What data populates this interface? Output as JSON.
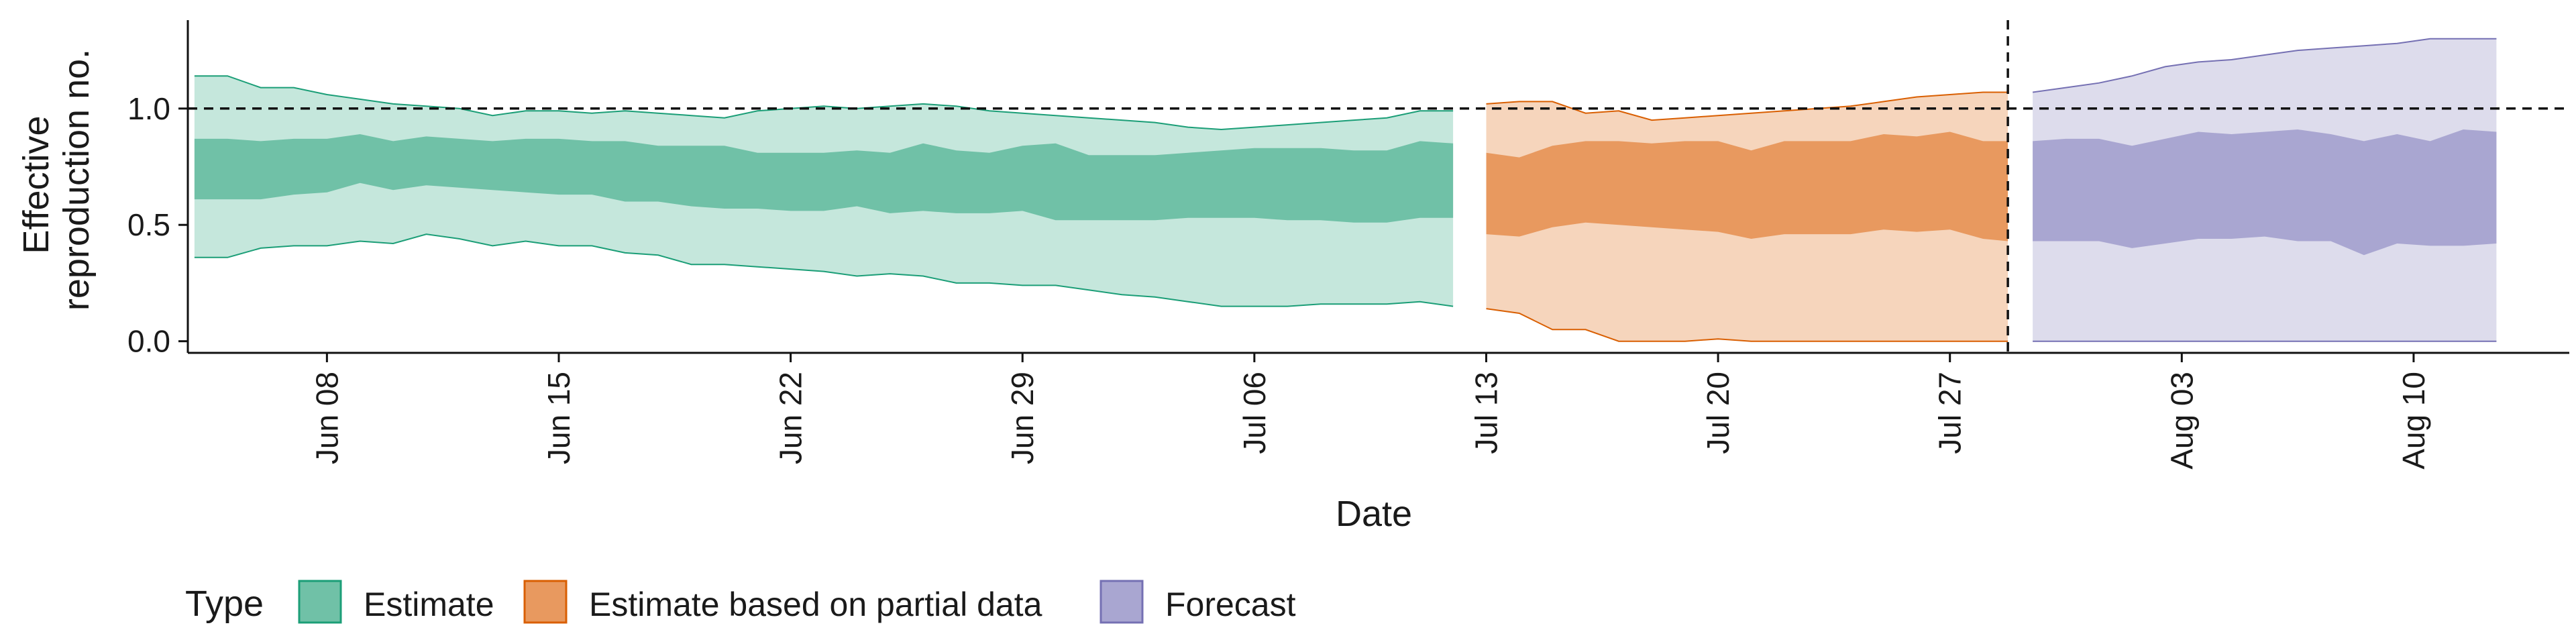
{
  "chart_data": {
    "type": "area",
    "title": "",
    "xlabel": "Date",
    "ylabel_lines": [
      "Effective",
      "reproduction no."
    ],
    "x_axis": {
      "start_date": "2020-06-05",
      "range_days": [
        -1.2,
        70.7
      ],
      "ticks": [
        {
          "day": 3,
          "label": "Jun 08"
        },
        {
          "day": 10,
          "label": "Jun 15"
        },
        {
          "day": 17,
          "label": "Jun 22"
        },
        {
          "day": 24,
          "label": "Jun 29"
        },
        {
          "day": 31,
          "label": "Jul 06"
        },
        {
          "day": 38,
          "label": "Jul 13"
        },
        {
          "day": 45,
          "label": "Jul 20"
        },
        {
          "day": 52,
          "label": "Jul 27"
        },
        {
          "day": 59,
          "label": "Aug 03"
        },
        {
          "day": 66,
          "label": "Aug 10"
        }
      ]
    },
    "y_axis": {
      "range": [
        -0.05,
        1.38
      ],
      "ticks": [
        {
          "value": 0.0,
          "label": "0.0"
        },
        {
          "value": 0.5,
          "label": "0.5"
        },
        {
          "value": 1.0,
          "label": "1.0"
        }
      ]
    },
    "reference_line": {
      "y": 1.0,
      "style": "dashed"
    },
    "forecast_divider_day": 53.75,
    "legend": {
      "title": "Type",
      "position": "bottom-left",
      "entries": [
        "Estimate",
        "Estimate based on partial data",
        "Forecast"
      ]
    },
    "series": [
      {
        "name": "Estimate",
        "fill_outer": "#c5e7dc",
        "fill_inner": "#70c1a7",
        "stroke": "#1b9e77",
        "days": [
          -1,
          0,
          1,
          2,
          3,
          4,
          5,
          6,
          7,
          8,
          9,
          10,
          11,
          12,
          13,
          14,
          15,
          16,
          17,
          18,
          19,
          20,
          21,
          22,
          23,
          24,
          25,
          26,
          27,
          28,
          29,
          30,
          31,
          32,
          33,
          34,
          35,
          36,
          37
        ],
        "lower_90": [
          0.36,
          0.36,
          0.4,
          0.41,
          0.41,
          0.43,
          0.42,
          0.46,
          0.44,
          0.41,
          0.43,
          0.41,
          0.41,
          0.38,
          0.37,
          0.33,
          0.33,
          0.32,
          0.31,
          0.3,
          0.28,
          0.29,
          0.28,
          0.25,
          0.25,
          0.24,
          0.24,
          0.22,
          0.2,
          0.19,
          0.17,
          0.15,
          0.15,
          0.15,
          0.16,
          0.16,
          0.16,
          0.17,
          0.15
        ],
        "lower_50": [
          0.61,
          0.61,
          0.61,
          0.63,
          0.64,
          0.68,
          0.65,
          0.67,
          0.66,
          0.65,
          0.64,
          0.63,
          0.63,
          0.6,
          0.6,
          0.58,
          0.57,
          0.57,
          0.56,
          0.56,
          0.58,
          0.55,
          0.56,
          0.55,
          0.55,
          0.56,
          0.52,
          0.52,
          0.52,
          0.52,
          0.53,
          0.53,
          0.53,
          0.52,
          0.52,
          0.51,
          0.51,
          0.53,
          0.53
        ],
        "upper_50": [
          0.87,
          0.87,
          0.86,
          0.87,
          0.87,
          0.89,
          0.86,
          0.88,
          0.87,
          0.86,
          0.87,
          0.87,
          0.86,
          0.86,
          0.84,
          0.84,
          0.84,
          0.81,
          0.81,
          0.81,
          0.82,
          0.81,
          0.85,
          0.82,
          0.81,
          0.84,
          0.85,
          0.8,
          0.8,
          0.8,
          0.81,
          0.82,
          0.83,
          0.83,
          0.83,
          0.82,
          0.82,
          0.86,
          0.85
        ],
        "upper_90": [
          1.14,
          1.14,
          1.09,
          1.09,
          1.06,
          1.04,
          1.02,
          1.01,
          1.0,
          0.97,
          0.99,
          0.99,
          0.98,
          0.99,
          0.98,
          0.97,
          0.96,
          0.99,
          1.0,
          1.01,
          1.0,
          1.01,
          1.02,
          1.01,
          0.99,
          0.98,
          0.97,
          0.96,
          0.95,
          0.94,
          0.92,
          0.91,
          0.92,
          0.93,
          0.94,
          0.95,
          0.96,
          0.99,
          0.99
        ]
      },
      {
        "name": "Estimate based on partial data",
        "fill_outer": "#f6d5bc",
        "fill_inner": "#e8995f",
        "stroke": "#d95f02",
        "days": [
          38,
          39,
          40,
          41,
          42,
          43,
          44,
          45,
          46,
          47,
          48,
          49,
          50,
          51,
          52,
          53,
          53.75
        ],
        "lower_90": [
          0.14,
          0.12,
          0.05,
          0.05,
          0.0,
          0.0,
          0.0,
          0.01,
          0.0,
          0.0,
          0.0,
          0.0,
          0.0,
          0.0,
          0.0,
          0.0,
          0.0
        ],
        "lower_50": [
          0.46,
          0.45,
          0.49,
          0.51,
          0.5,
          0.49,
          0.48,
          0.47,
          0.44,
          0.46,
          0.46,
          0.46,
          0.48,
          0.47,
          0.48,
          0.44,
          0.43
        ],
        "upper_50": [
          0.81,
          0.79,
          0.84,
          0.86,
          0.86,
          0.85,
          0.86,
          0.86,
          0.82,
          0.86,
          0.86,
          0.86,
          0.89,
          0.88,
          0.9,
          0.86,
          0.86
        ],
        "upper_90": [
          1.02,
          1.03,
          1.03,
          0.98,
          0.99,
          0.95,
          0.96,
          0.97,
          0.98,
          0.99,
          1.0,
          1.01,
          1.03,
          1.05,
          1.06,
          1.07,
          1.07
        ]
      },
      {
        "name": "Forecast",
        "fill_outer": "#dddcec",
        "fill_inner": "#a9a6d1",
        "stroke": "#7570b3",
        "days": [
          54.5,
          55.5,
          56.5,
          57.5,
          58.5,
          59.5,
          60.5,
          61.5,
          62.5,
          63.5,
          64.5,
          65.5,
          66.5,
          67.5,
          68.5
        ],
        "lower_90": [
          0.0,
          0.0,
          0.0,
          0.0,
          0.0,
          0.0,
          0.0,
          0.0,
          0.0,
          0.0,
          0.0,
          0.0,
          0.0,
          0.0,
          0.0
        ],
        "lower_50": [
          0.43,
          0.43,
          0.43,
          0.4,
          0.42,
          0.44,
          0.44,
          0.45,
          0.43,
          0.43,
          0.37,
          0.42,
          0.41,
          0.41,
          0.42
        ],
        "upper_50": [
          0.86,
          0.87,
          0.87,
          0.84,
          0.87,
          0.9,
          0.89,
          0.9,
          0.91,
          0.89,
          0.86,
          0.89,
          0.86,
          0.91,
          0.9
        ],
        "upper_90": [
          1.07,
          1.09,
          1.11,
          1.14,
          1.18,
          1.2,
          1.21,
          1.23,
          1.25,
          1.26,
          1.27,
          1.28,
          1.3,
          1.3,
          1.3
        ]
      }
    ]
  }
}
